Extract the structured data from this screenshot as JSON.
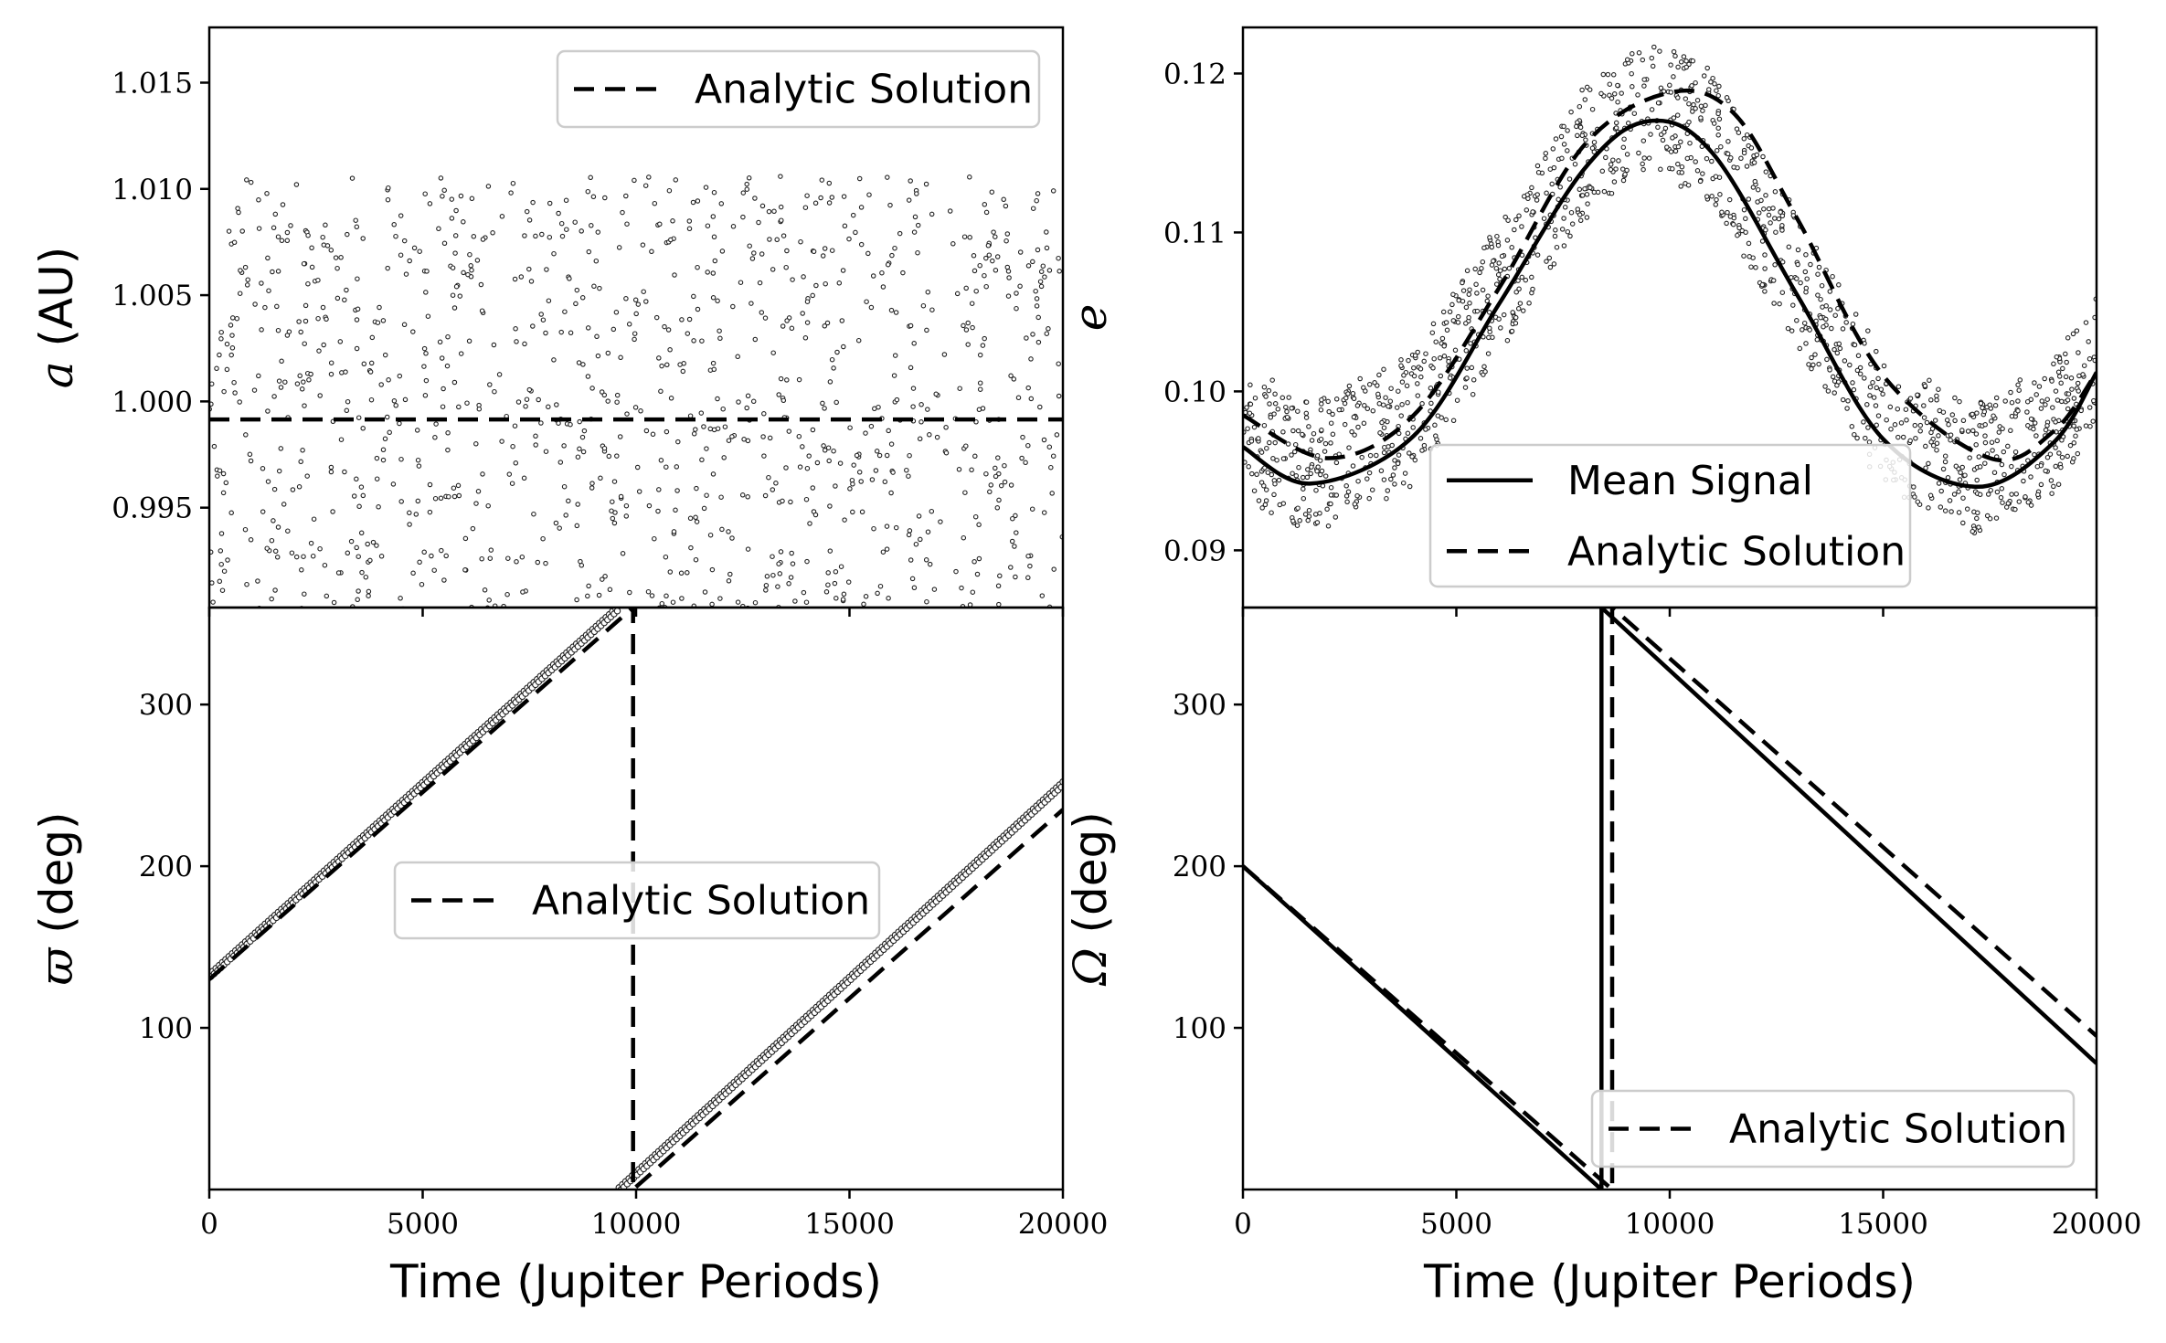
{
  "figure": {
    "shared_xlabel": "Time (Jupiter Periods)"
  },
  "chart_data": [
    {
      "id": "a",
      "type": "scatter",
      "ylabel": "a (AU)",
      "ylabel_symbol": "a",
      "ylabel_unit": " (AU)",
      "xlim": [
        0,
        20000
      ],
      "ylim": [
        0.9903,
        1.0176
      ],
      "yticks": [
        0.995,
        1.0,
        1.005,
        1.01,
        1.015
      ],
      "ytick_labels": [
        "0.995",
        "1.000",
        "1.005",
        "1.010",
        "1.015"
      ],
      "xticks": [
        0,
        5000,
        10000,
        15000,
        20000
      ],
      "show_xticklabels": false,
      "legend": {
        "position": "upper right",
        "entries": [
          {
            "label": "Analytic Solution",
            "style": "dashed"
          }
        ]
      },
      "series": [
        {
          "name": "Analytic Solution",
          "style": "dashed",
          "x": [
            0,
            20000
          ],
          "y": [
            0.99915,
            0.99915
          ]
        },
        {
          "style": "points",
          "kind": "noise",
          "count": 1100,
          "y_min": 0.9903,
          "y_max": 1.0176,
          "y_center": 1.0004,
          "y_spread": 0.0068
        }
      ]
    },
    {
      "id": "e",
      "type": "scatter",
      "ylabel": "e",
      "ylabel_symbol": "e",
      "ylabel_unit": "",
      "xlim": [
        0,
        20000
      ],
      "ylim": [
        0.0864,
        0.1229
      ],
      "yticks": [
        0.09,
        0.1,
        0.11,
        0.12
      ],
      "ytick_labels": [
        "0.09",
        "0.10",
        "0.11",
        "0.12"
      ],
      "xticks": [
        0,
        5000,
        10000,
        15000,
        20000
      ],
      "show_xticklabels": false,
      "legend": {
        "position": "lower right",
        "entries": [
          {
            "label": "Mean Signal",
            "style": "solid"
          },
          {
            "label": "Analytic Solution",
            "style": "dashed"
          }
        ]
      },
      "series": [
        {
          "name": "Mean Signal",
          "style": "solid",
          "x": [
            0,
            1600,
            4000,
            6000,
            8000,
            9500,
            11000,
            13000,
            15000,
            17200,
            19000,
            20000
          ],
          "y": [
            0.0965,
            0.0942,
            0.0972,
            0.1055,
            0.114,
            0.117,
            0.115,
            0.106,
            0.097,
            0.094,
            0.0968,
            0.1012
          ]
        },
        {
          "name": "Analytic Solution",
          "style": "dashed",
          "x": [
            0,
            2000,
            4000,
            6000,
            8000,
            10000,
            11500,
            13000,
            15000,
            17500,
            19000,
            20000
          ],
          "y": [
            0.0985,
            0.0958,
            0.0985,
            0.1065,
            0.1155,
            0.1188,
            0.1175,
            0.1108,
            0.101,
            0.0958,
            0.0975,
            0.1012
          ]
        },
        {
          "style": "points",
          "kind": "band",
          "count": 1400,
          "band_halfwidth": 0.0042
        }
      ]
    },
    {
      "id": "varpi",
      "type": "line",
      "ylabel": "ϖ (deg)",
      "ylabel_symbol": "ϖ",
      "ylabel_unit": " (deg)",
      "xlim": [
        0,
        20000
      ],
      "ylim": [
        0,
        360
      ],
      "yticks": [
        100,
        200,
        300
      ],
      "ytick_labels": [
        "100",
        "200",
        "300"
      ],
      "xticks": [
        0,
        5000,
        10000,
        15000,
        20000
      ],
      "xtick_labels": [
        "0",
        "5000",
        "10000",
        "15000",
        "20000"
      ],
      "xlabel": "Time (Jupiter Periods)",
      "show_xticklabels": true,
      "legend": {
        "position": "center",
        "entries": [
          {
            "label": "Analytic Solution",
            "style": "dashed"
          }
        ]
      },
      "series": [
        {
          "name": "Analytic Solution",
          "style": "dashed",
          "x": [
            0,
            9930,
            9930,
            9930,
            20000
          ],
          "y": [
            130,
            360,
            360,
            0,
            235
          ]
        },
        {
          "style": "points",
          "kind": "ramp",
          "segments": [
            {
              "x": [
                0,
                9600
              ],
              "y": [
                132,
                360
              ]
            },
            {
              "x": [
                9600,
                20000
              ],
              "y": [
                0,
                251
              ]
            }
          ],
          "count": 520
        }
      ]
    },
    {
      "id": "Omega",
      "type": "line",
      "ylabel": "Ω (deg)",
      "ylabel_symbol": "Ω",
      "ylabel_unit": " (deg)",
      "xlim": [
        0,
        20000
      ],
      "ylim": [
        0,
        360
      ],
      "yticks": [
        100,
        200,
        300
      ],
      "ytick_labels": [
        "100",
        "200",
        "300"
      ],
      "xticks": [
        0,
        5000,
        10000,
        15000,
        20000
      ],
      "xtick_labels": [
        "0",
        "5000",
        "10000",
        "15000",
        "20000"
      ],
      "xlabel": "Time (Jupiter Periods)",
      "show_xticklabels": true,
      "legend": {
        "position": "lower right",
        "entries": [
          {
            "label": "Analytic Solution",
            "style": "dashed"
          }
        ]
      },
      "series": [
        {
          "name": "Mean Signal",
          "style": "solid",
          "x": [
            0,
            8400,
            8400,
            8400,
            20000
          ],
          "y": [
            200,
            0,
            0,
            360,
            78
          ]
        },
        {
          "name": "Analytic Solution",
          "style": "dashed",
          "x": [
            0,
            8650,
            8650,
            8650,
            20000
          ],
          "y": [
            200,
            0,
            0,
            360,
            95
          ]
        }
      ]
    }
  ]
}
